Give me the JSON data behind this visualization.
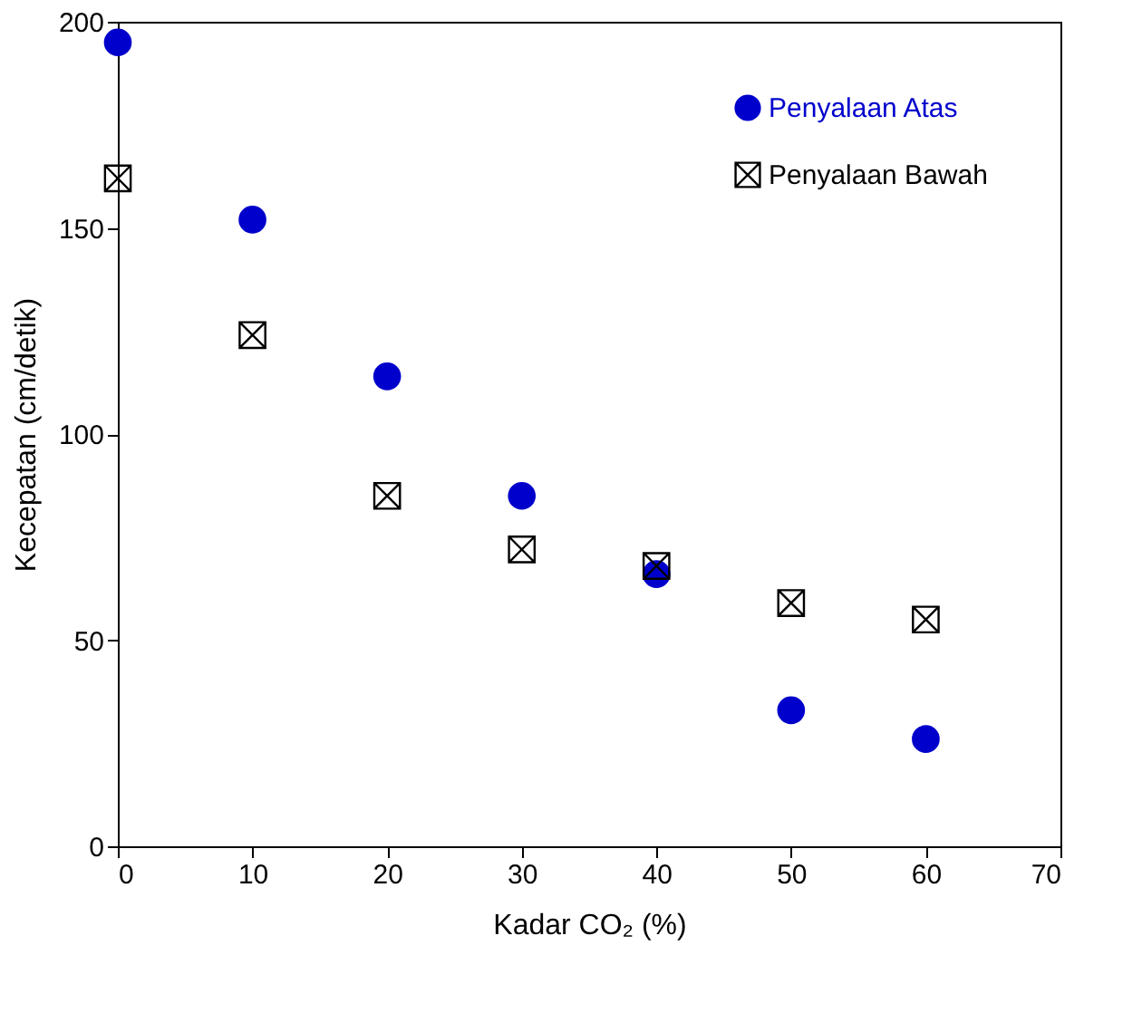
{
  "chart_data": {
    "type": "scatter",
    "xlabel": "Kadar CO₂ (%)",
    "ylabel": "Kecepatan (cm/detik)",
    "x": [
      0,
      10,
      20,
      30,
      40,
      50,
      60
    ],
    "series": [
      {
        "name": "Penyalaan Atas",
        "color": "#0000cc",
        "marker": "circle",
        "values": [
          195,
          152,
          114,
          85,
          66,
          33,
          26
        ]
      },
      {
        "name": "Penyalaan Bawah",
        "color": "#000000",
        "marker": "cross",
        "values": [
          162,
          124,
          85,
          72,
          68,
          59,
          55
        ]
      }
    ],
    "xlim": [
      0,
      70
    ],
    "xticks": [
      0,
      10,
      20,
      30,
      40,
      50,
      60,
      70
    ],
    "ylim": [
      0,
      200
    ],
    "yticks": [
      0,
      50,
      100,
      150,
      200
    ],
    "grid": false,
    "legend": "top right"
  }
}
